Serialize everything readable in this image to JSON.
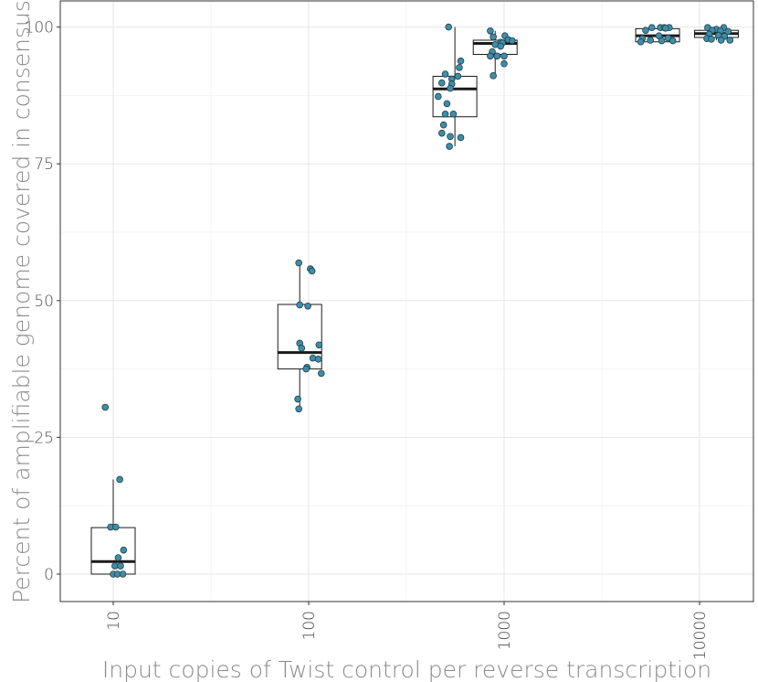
{
  "chart_data": {
    "type": "boxplot",
    "xlabel": "Input copies of Twist control per reverse transcription",
    "ylabel": "Percent of amplifiable genome covered in consensus",
    "x_scale": "log10",
    "x_ticks": [
      "10",
      "100",
      "1000",
      "10000"
    ],
    "y_ticks": [
      "0",
      "25",
      "50",
      "75",
      "100"
    ],
    "ylim": [
      -5,
      105
    ],
    "grid": true,
    "point_color": "#3f8da8",
    "groups": [
      {
        "x": 10,
        "box": {
          "q1": 0,
          "median": 2.3,
          "q3": 8.5,
          "whisker_low": 0,
          "whisker_high": 17.3
        },
        "points": [
          [
            9.1,
            30.5
          ],
          [
            10.8,
            17.3
          ],
          [
            9.7,
            8.6
          ],
          [
            10.3,
            8.6
          ],
          [
            11.3,
            4.4
          ],
          [
            10.6,
            3.0
          ],
          [
            10.2,
            1.5
          ],
          [
            10.9,
            1.5
          ],
          [
            10.0,
            0.0
          ],
          [
            10.5,
            0.0
          ],
          [
            11.2,
            0.0
          ]
        ]
      },
      {
        "x": 90,
        "box": {
          "q1": 37.5,
          "median": 40.5,
          "q3": 49.3,
          "whisker_low": 30.2,
          "whisker_high": 56.7
        },
        "points": [
          [
            89,
            56.9
          ],
          [
            102,
            55.8
          ],
          [
            104,
            55.4
          ],
          [
            90,
            49.2
          ],
          [
            99,
            49.0
          ],
          [
            90,
            42.2
          ],
          [
            113,
            41.9
          ],
          [
            92,
            41.3
          ],
          [
            98,
            37.8
          ],
          [
            97,
            37.5
          ],
          [
            105,
            39.5
          ],
          [
            112,
            39.3
          ],
          [
            116,
            36.7
          ],
          [
            88,
            32.0
          ],
          [
            89,
            30.2
          ]
        ]
      },
      {
        "x": 560,
        "box": {
          "q1": 83.6,
          "median": 88.7,
          "q3": 91.0,
          "whisker_low": 78.2,
          "whisker_high": 100
        },
        "points": [
          [
            520,
            100
          ],
          [
            600,
            93.8
          ],
          [
            590,
            92.6
          ],
          [
            500,
            91.4
          ],
          [
            580,
            91.0
          ],
          [
            540,
            90.5
          ],
          [
            480,
            89.8
          ],
          [
            540,
            89.6
          ],
          [
            530,
            88.8
          ],
          [
            460,
            87.3
          ],
          [
            510,
            86.0
          ],
          [
            500,
            84.1
          ],
          [
            550,
            84.1
          ],
          [
            490,
            82.1
          ],
          [
            530,
            80.0
          ],
          [
            480,
            80.6
          ],
          [
            600,
            79.8
          ],
          [
            525,
            78.2
          ]
        ]
      },
      {
        "x": 900,
        "box": {
          "q1": 95.0,
          "median": 97.0,
          "q3": 97.6,
          "whisker_low": 91.0,
          "whisker_high": 99.3
        },
        "points": [
          [
            850,
            99.3
          ],
          [
            1010,
            98.4
          ],
          [
            880,
            98.2
          ],
          [
            1050,
            97.7
          ],
          [
            1100,
            97.5
          ],
          [
            960,
            97.2
          ],
          [
            980,
            97.1
          ],
          [
            900,
            96.8
          ],
          [
            960,
            96.5
          ],
          [
            870,
            95.5
          ],
          [
            920,
            94.7
          ],
          [
            850,
            94.7
          ],
          [
            1000,
            94.7
          ],
          [
            1000,
            93.3
          ],
          [
            880,
            91.1
          ]
        ]
      },
      {
        "x": 6100,
        "box": {
          "q1": 97.3,
          "median": 98.4,
          "q3": 99.7,
          "whisker_low": 97.3,
          "whisker_high": 99.8
        },
        "points": [
          [
            5700,
            99.9
          ],
          [
            6300,
            99.9
          ],
          [
            6600,
            99.9
          ],
          [
            7000,
            99.9
          ],
          [
            6700,
            99.8
          ],
          [
            5300,
            99.4
          ],
          [
            6200,
            98.4
          ],
          [
            6900,
            98.0
          ],
          [
            5100,
            97.9
          ],
          [
            5600,
            97.6
          ],
          [
            6400,
            97.5
          ],
          [
            7300,
            97.5
          ],
          [
            5000,
            97.3
          ]
        ]
      },
      {
        "x": 12200,
        "box": {
          "q1": 98.1,
          "median": 98.8,
          "q3": 99.4,
          "whisker_low": 97.6,
          "whisker_high": 99.9
        },
        "points": [
          [
            11000,
            99.9
          ],
          [
            13300,
            99.9
          ],
          [
            12200,
            99.6
          ],
          [
            11600,
            99.4
          ],
          [
            12800,
            99.3
          ],
          [
            14000,
            99.2
          ],
          [
            11200,
            98.7
          ],
          [
            12500,
            98.5
          ],
          [
            13400,
            98.3
          ],
          [
            10900,
            97.9
          ],
          [
            11500,
            97.8
          ],
          [
            12900,
            97.6
          ],
          [
            14300,
            97.6
          ]
        ]
      }
    ]
  }
}
